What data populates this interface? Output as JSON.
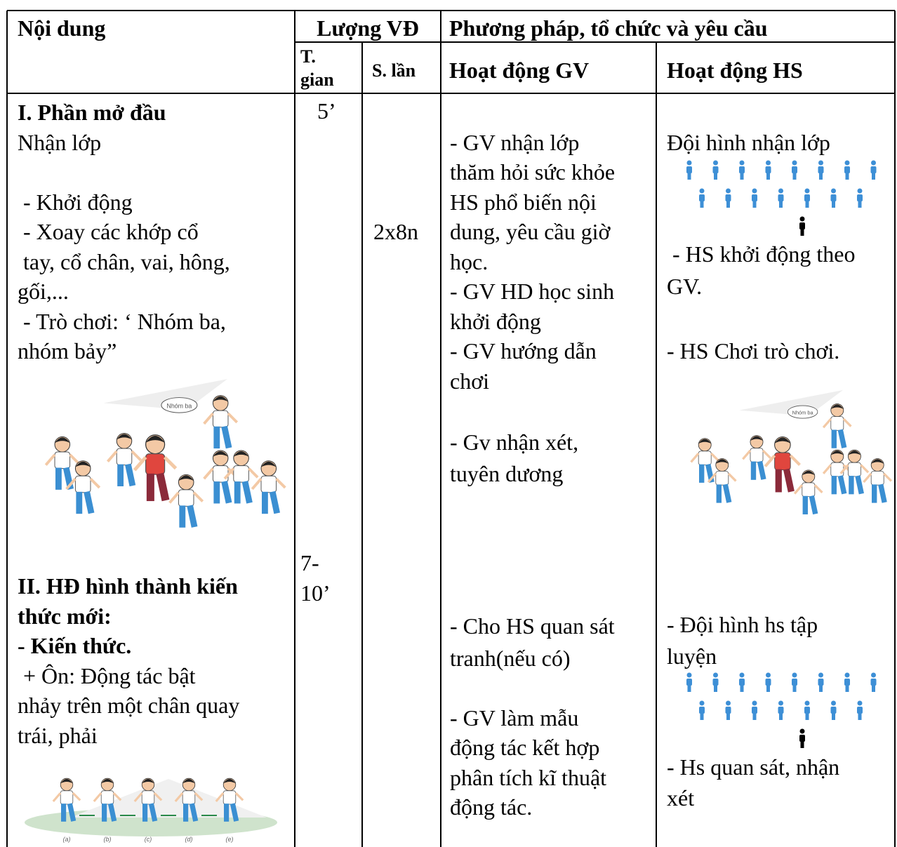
{
  "header": {
    "content": "Nội dung",
    "amount": "Lượng VĐ",
    "method": "Phương pháp, tổ chức và yêu cầu",
    "time": "T. gian",
    "reps": "S. lần",
    "gv": "Hoạt động GV",
    "hs": "Hoạt động HS"
  },
  "body": {
    "content": [
      "I. Phần mở đầu",
      "Nhận lớp",
      " - Khởi động",
      " - Xoay các khớp cổ",
      " tay, cổ chân, vai, hông,",
      "gối,...",
      " - Trò chơi: ‘ Nhóm ba,",
      "nhóm bảy”",
      "II. HĐ hình thành kiến",
      "thức mới:",
      "- Kiến thức.",
      " + Ôn: Động tác bật",
      "nhảy trên một chân quay",
      "trái, phải"
    ],
    "time": [
      "5’",
      "7-",
      "10’"
    ],
    "reps": [
      "2x8n"
    ],
    "gv": [
      "- GV nhận lớp",
      "thăm hỏi sức khỏe",
      "HS phổ biến nội",
      "dung, yêu cầu giờ",
      "học.",
      "- GV HD học sinh",
      "khởi động",
      "- GV hướng dẫn",
      "chơi",
      "- Gv nhận xét,",
      "tuyên dương",
      "- Cho HS quan sát",
      "tranh(nếu có)",
      "- GV làm mẫu",
      "động tác kết hợp",
      "phân tích kĩ thuật",
      "động tác."
    ],
    "hs": [
      "Đội hình nhận lớp",
      " - HS khởi động theo",
      "GV.",
      "- HS Chơi trò chơi.",
      "- Đội hình hs tập",
      "luyện",
      "- Hs quan sát, nhận",
      "xét"
    ]
  },
  "images": {
    "game_caption": "Nhóm ba",
    "steps": [
      "(a)",
      "(b)",
      "(c)",
      "(d)",
      "(e)"
    ]
  }
}
